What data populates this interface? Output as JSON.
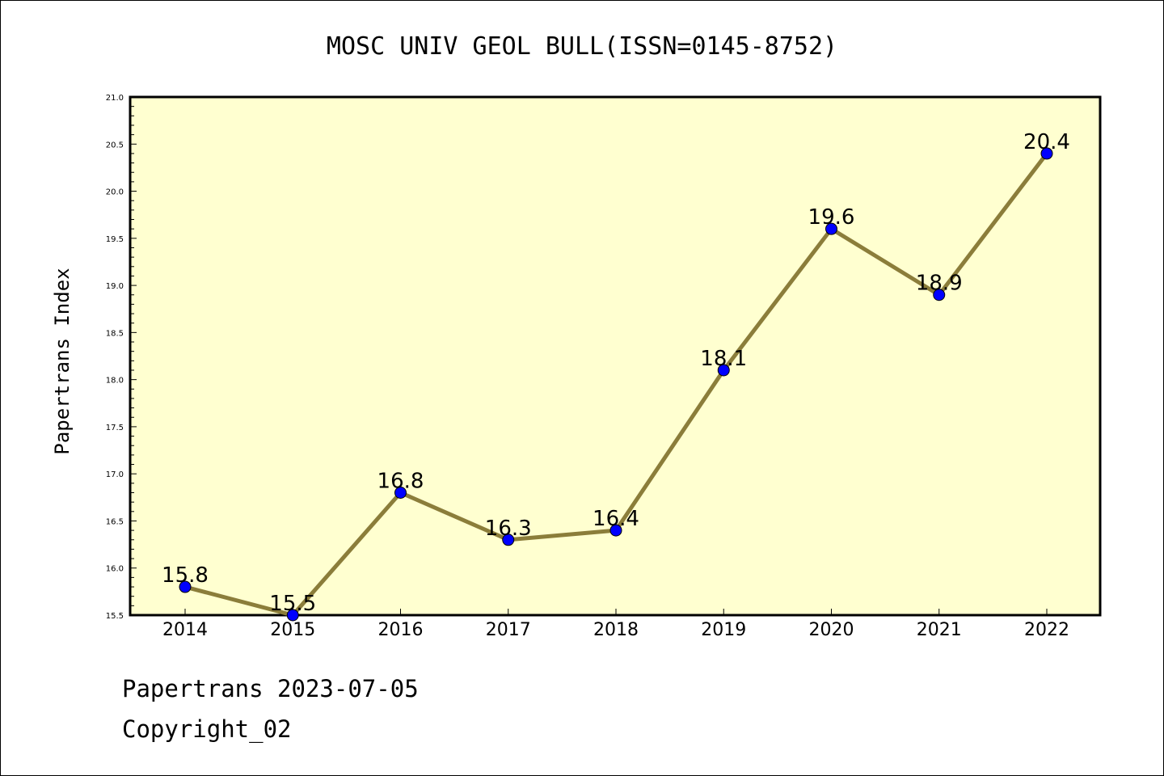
{
  "chart_data": {
    "type": "line",
    "title": "MOSC UNIV GEOL BULL(ISSN=0145-8752)",
    "xlabel": "",
    "ylabel": "Papertrans Index",
    "categories": [
      "2014",
      "2015",
      "2016",
      "2017",
      "2018",
      "2019",
      "2020",
      "2021",
      "2022"
    ],
    "series": [
      {
        "values": [
          15.8,
          15.5,
          16.8,
          16.3,
          16.4,
          18.1,
          19.6,
          18.9,
          20.4
        ],
        "labels": [
          "15.8",
          "15.5",
          "16.8",
          "16.3",
          "16.4",
          "18.1",
          "19.6",
          "18.9",
          "20.4"
        ]
      }
    ],
    "ylim": [
      15.5,
      21.0
    ],
    "yticks": [
      "15.5",
      "16.0",
      "16.5",
      "17.0",
      "17.5",
      "18.0",
      "18.5",
      "19.0",
      "19.5",
      "20.0",
      "20.5",
      "21.0"
    ],
    "grid": false,
    "colors": {
      "plot_background": "#ffffd0",
      "line": "#8b7d3a",
      "marker": "#0000ff"
    }
  },
  "footer": {
    "line1": "Papertrans 2023-07-05",
    "line2": "Copyright_02"
  }
}
